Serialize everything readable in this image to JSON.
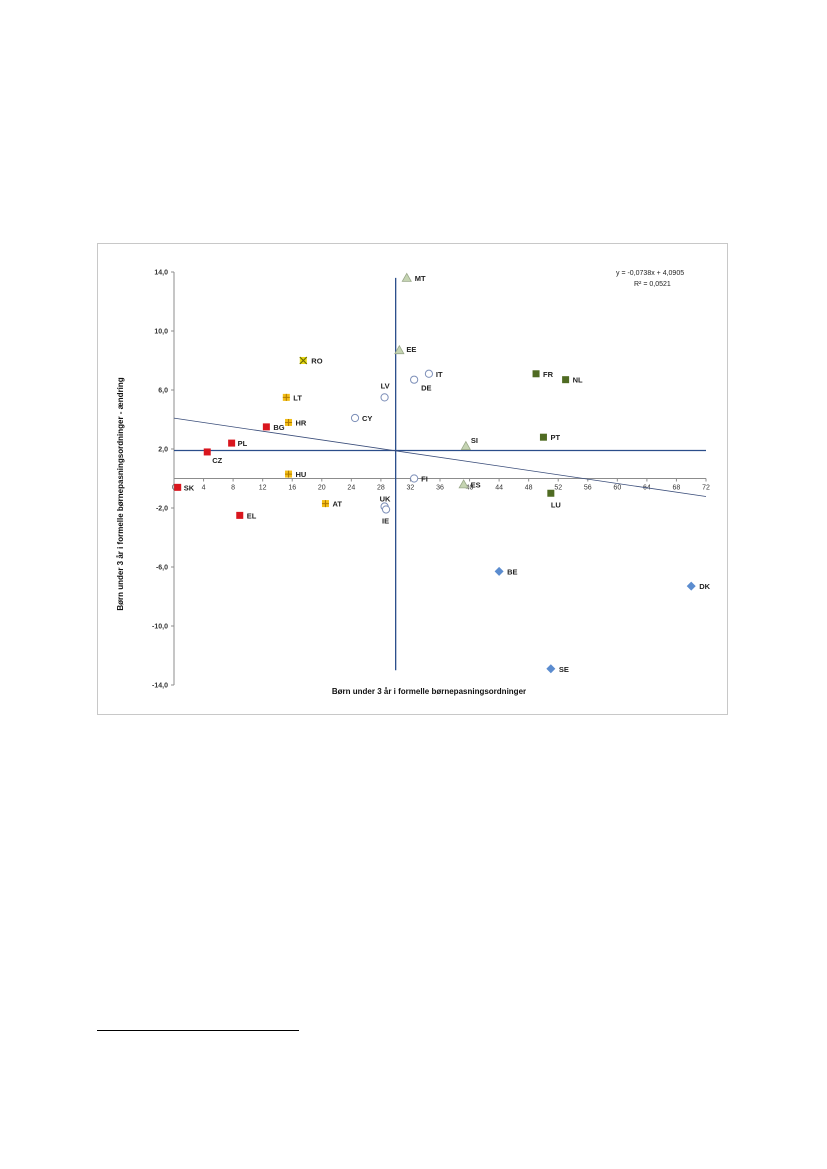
{
  "chart_data": {
    "type": "scatter",
    "xlabel": "Børn under 3 år i formelle børnepasningsordninger",
    "ylabel": "Børn under 3 år i formelle børnepasningsordninger  - ændring",
    "xlim": [
      0,
      72
    ],
    "ylim": [
      -14,
      14
    ],
    "xticks": [
      "0",
      "4",
      "8",
      "12",
      "16",
      "20",
      "24",
      "28",
      "32",
      "36",
      "40",
      "44",
      "48",
      "52",
      "56",
      "60",
      "64",
      "68",
      "72"
    ],
    "yticks": [
      "14,0",
      "10,0",
      "6,0",
      "2,0",
      "-2,0",
      "-6,0",
      "-10,0",
      "-14,0"
    ],
    "trendline": {
      "equation": "y = -0,0738x + 4,0905",
      "r2": "R² = 0,0521",
      "slope": -0.0738,
      "intercept": 4.0905
    },
    "reference_lines": {
      "x": 30,
      "y": 1.9
    },
    "colors": {
      "red": "#d9161e",
      "yellow": "#f2bd16",
      "green": "#4f6b22",
      "blue": "#5b8ccf",
      "triangle": "#c5d4b2",
      "circle": "#ffffff",
      "axis_line": "#2a4d8a"
    },
    "points": [
      {
        "label": "SK",
        "x": 0.5,
        "y": -0.6,
        "marker": "square",
        "color": "#d9161e"
      },
      {
        "label": "CZ",
        "x": 4.5,
        "y": 1.8,
        "marker": "square",
        "color": "#d9161e"
      },
      {
        "label": "PL",
        "x": 7.8,
        "y": 2.4,
        "marker": "square",
        "color": "#d9161e"
      },
      {
        "label": "EL",
        "x": 8.9,
        "y": -2.5,
        "marker": "square",
        "color": "#d9161e"
      },
      {
        "label": "BG",
        "x": 12.5,
        "y": 3.5,
        "marker": "square",
        "color": "#d9161e"
      },
      {
        "label": "RO",
        "x": 17.5,
        "y": 8.0,
        "marker": "x-square",
        "color": "#e8d816"
      },
      {
        "label": "LT",
        "x": 15.2,
        "y": 5.5,
        "marker": "plus-square",
        "color": "#f2bd16"
      },
      {
        "label": "HR",
        "x": 15.5,
        "y": 3.8,
        "marker": "plus-square",
        "color": "#f2bd16"
      },
      {
        "label": "HU",
        "x": 15.5,
        "y": 0.3,
        "marker": "plus-square",
        "color": "#f2bd16"
      },
      {
        "label": "AT",
        "x": 20.5,
        "y": -1.7,
        "marker": "plus-square",
        "color": "#f2bd16"
      },
      {
        "label": "LV",
        "x": 28.5,
        "y": 5.5,
        "marker": "circle",
        "color": "#ffffff"
      },
      {
        "label": "CY",
        "x": 24.5,
        "y": 4.1,
        "marker": "circle",
        "color": "#ffffff"
      },
      {
        "label": "DE",
        "x": 32.5,
        "y": 6.7,
        "marker": "circle",
        "color": "#ffffff"
      },
      {
        "label": "IT",
        "x": 34.5,
        "y": 7.1,
        "marker": "circle",
        "color": "#ffffff"
      },
      {
        "label": "UK",
        "x": 28.5,
        "y": -1.9,
        "marker": "circle",
        "color": "#ffffff"
      },
      {
        "label": "IE",
        "x": 28.7,
        "y": -2.1,
        "marker": "circle",
        "color": "#ffffff"
      },
      {
        "label": "FI",
        "x": 32.5,
        "y": 0.0,
        "marker": "circle",
        "color": "#ffffff"
      },
      {
        "label": "MT",
        "x": 31.5,
        "y": 13.6,
        "marker": "triangle",
        "color": "#c5d4b2"
      },
      {
        "label": "EE",
        "x": 30.5,
        "y": 8.7,
        "marker": "triangle",
        "color": "#c5d4b2"
      },
      {
        "label": "SI",
        "x": 39.5,
        "y": 2.2,
        "marker": "triangle",
        "color": "#c5d4b2"
      },
      {
        "label": "ES",
        "x": 39.2,
        "y": -0.4,
        "marker": "triangle",
        "color": "#c5d4b2"
      },
      {
        "label": "FR",
        "x": 49.0,
        "y": 7.1,
        "marker": "square",
        "color": "#4f6b22"
      },
      {
        "label": "NL",
        "x": 53.0,
        "y": 6.7,
        "marker": "square",
        "color": "#4f6b22"
      },
      {
        "label": "PT",
        "x": 50.0,
        "y": 2.8,
        "marker": "square",
        "color": "#4f6b22"
      },
      {
        "label": "LU",
        "x": 51.0,
        "y": -1.0,
        "marker": "square",
        "color": "#4f6b22"
      },
      {
        "label": "BE",
        "x": 44.0,
        "y": -6.3,
        "marker": "diamond",
        "color": "#5b8ccf"
      },
      {
        "label": "SE",
        "x": 51.0,
        "y": -12.9,
        "marker": "diamond",
        "color": "#5b8ccf"
      },
      {
        "label": "DK",
        "x": 70.0,
        "y": -7.3,
        "marker": "diamond",
        "color": "#5b8ccf"
      }
    ]
  }
}
